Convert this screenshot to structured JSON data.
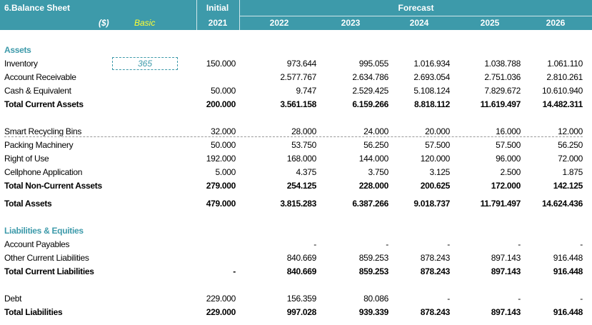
{
  "header": {
    "sheet_title": "6.Balance Sheet",
    "currency": "($)",
    "scenario": "Basic",
    "initial_label": "Initial",
    "forecast_label": "Forecast",
    "years": [
      "2021",
      "2022",
      "2023",
      "2024",
      "2025",
      "2026"
    ]
  },
  "inventory_days": "365",
  "rows": [
    {
      "label": "Assets",
      "type": "section",
      "values": []
    },
    {
      "label": "Inventory",
      "type": "normal",
      "values": [
        "150.000",
        "973.644",
        "995.055",
        "1.016.934",
        "1.038.788",
        "1.061.110"
      ]
    },
    {
      "label": "Account Receivable",
      "type": "normal",
      "values": [
        "",
        "2.577.767",
        "2.634.786",
        "2.693.054",
        "2.751.036",
        "2.810.261"
      ]
    },
    {
      "label": "Cash & Equivalent",
      "type": "normal",
      "values": [
        "50.000",
        "9.747",
        "2.529.425",
        "5.108.124",
        "7.829.672",
        "10.610.940"
      ]
    },
    {
      "label": "Total Current Assets",
      "type": "bold",
      "values": [
        "200.000",
        "3.561.158",
        "6.159.266",
        "8.818.112",
        "11.619.497",
        "14.482.311"
      ]
    },
    {
      "label": "Smart Recycling Bins",
      "type": "normal",
      "values": [
        "32.000",
        "28.000",
        "24.000",
        "20.000",
        "16.000",
        "12.000"
      ]
    },
    {
      "label": "Packing Machinery",
      "type": "normal",
      "values": [
        "50.000",
        "53.750",
        "56.250",
        "57.500",
        "57.500",
        "56.250"
      ]
    },
    {
      "label": "Right of Use",
      "type": "normal",
      "values": [
        "192.000",
        "168.000",
        "144.000",
        "120.000",
        "96.000",
        "72.000"
      ]
    },
    {
      "label": "Cellphone Application",
      "type": "normal",
      "values": [
        "5.000",
        "4.375",
        "3.750",
        "3.125",
        "2.500",
        "1.875"
      ]
    },
    {
      "label": "Total Non-Current Assets",
      "type": "bold",
      "values": [
        "279.000",
        "254.125",
        "228.000",
        "200.625",
        "172.000",
        "142.125"
      ]
    },
    {
      "label": "Total Assets",
      "type": "bold",
      "values": [
        "479.000",
        "3.815.283",
        "6.387.266",
        "9.018.737",
        "11.791.497",
        "14.624.436"
      ]
    },
    {
      "label": "Liabilities & Equities",
      "type": "section",
      "values": []
    },
    {
      "label": "Account Payables",
      "type": "normal",
      "values": [
        "",
        "-",
        "-",
        "-",
        "-",
        "-"
      ]
    },
    {
      "label": "Other Current Liabilities",
      "type": "normal",
      "values": [
        "",
        "840.669",
        "859.253",
        "878.243",
        "897.143",
        "916.448"
      ]
    },
    {
      "label": "Total Current Liabilities",
      "type": "bold",
      "values": [
        "-",
        "840.669",
        "859.253",
        "878.243",
        "897.143",
        "916.448"
      ]
    },
    {
      "label": "Debt",
      "type": "normal",
      "values": [
        "229.000",
        "156.359",
        "80.086",
        "-",
        "-",
        "-"
      ]
    },
    {
      "label": "Total Liabilities",
      "type": "bold",
      "values": [
        "229.000",
        "997.028",
        "939.339",
        "878.243",
        "897.143",
        "916.448"
      ]
    }
  ]
}
